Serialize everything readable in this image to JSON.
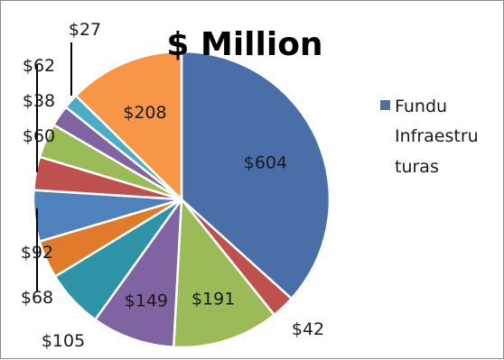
{
  "chart_data": {
    "type": "pie",
    "title": "$ Million",
    "slices": [
      {
        "label": "$604",
        "value": 604,
        "color": "#4a6fa8"
      },
      {
        "label": "$42",
        "value": 42,
        "color": "#c0504d"
      },
      {
        "label": "$191",
        "value": 191,
        "color": "#9bbb59"
      },
      {
        "label": "$149",
        "value": 149,
        "color": "#8064a2"
      },
      {
        "label": "$105",
        "value": 105,
        "color": "#2f93a8"
      },
      {
        "label": "$68",
        "value": 68,
        "color": "#e07b2c"
      },
      {
        "label": "$92",
        "value": 92,
        "color": "#4f81bd"
      },
      {
        "label": "$60",
        "value": 60,
        "color": "#c0504d"
      },
      {
        "label": "$62",
        "value": 62,
        "color": "#9bbb59"
      },
      {
        "label": "$38",
        "value": 38,
        "color": "#8064a2"
      },
      {
        "label": "$27",
        "value": 27,
        "color": "#4bacc6"
      },
      {
        "label": "$208",
        "value": 208,
        "color": "#f79646"
      }
    ],
    "legend": {
      "placement": "right",
      "entry_lines": [
        "Fundu",
        "Infraestru",
        "turas"
      ],
      "color": "#4a6fa8"
    }
  }
}
